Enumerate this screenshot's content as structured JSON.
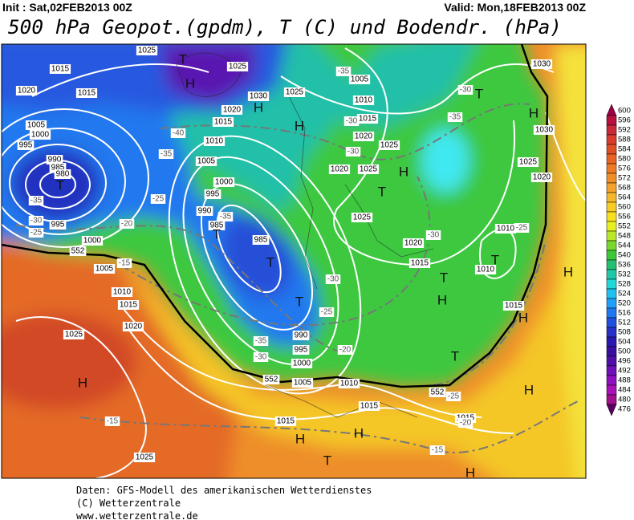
{
  "header": {
    "init": "Init : Sat,02FEB2013 00Z",
    "valid": "Valid: Mon,18FEB2013 00Z",
    "title": "500 hPa Geopot.(gpdm), T (C) und Bodendr. (hPa)"
  },
  "map": {
    "pressure_labels": [
      "1025",
      "1015",
      "1020",
      "1015",
      "1005",
      "1000",
      "995",
      "990",
      "985",
      "980",
      "995",
      "1000",
      "1005",
      "1010",
      "1015",
      "1020",
      "1025",
      "1025",
      "1020",
      "1015",
      "1010",
      "1005",
      "1000",
      "995",
      "990",
      "985",
      "985",
      "1030",
      "1025",
      "1005",
      "1010",
      "1015",
      "1020",
      "1025",
      "1020",
      "1025",
      "1025",
      "1020",
      "1015",
      "1010",
      "1010",
      "1015",
      "1030",
      "1030",
      "1025",
      "1020",
      "990",
      "995",
      "1000",
      "1005",
      "1010",
      "1015",
      "1015",
      "1015",
      "1025"
    ],
    "temperature_labels": [
      "-35",
      "-30",
      "-35",
      "-40",
      "-35",
      "-30",
      "-30",
      "-25",
      "-20",
      "-25",
      "-30",
      "-35",
      "-35",
      "-30",
      "-25",
      "-20",
      "-30",
      "-35",
      "-15",
      "-15",
      "-25",
      "-20",
      "-15",
      "-30",
      "-25"
    ],
    "contour_labels": [
      "552",
      "552",
      "552"
    ],
    "centers": [
      "H",
      "T",
      "H",
      "H",
      "T",
      "H",
      "T",
      "T",
      "T",
      "T",
      "T",
      "H",
      "T",
      "T",
      "H",
      "H",
      "H",
      "T",
      "H",
      "H",
      "H",
      "H",
      "T",
      "H"
    ]
  },
  "legend": {
    "values": [
      600,
      596,
      592,
      588,
      584,
      580,
      576,
      572,
      568,
      564,
      560,
      556,
      552,
      548,
      544,
      540,
      536,
      532,
      528,
      524,
      520,
      516,
      512,
      508,
      504,
      500,
      496,
      492,
      488,
      484,
      480,
      476
    ],
    "colors": [
      "#9a0046",
      "#b8103e",
      "#c82838",
      "#d83c2c",
      "#e04e24",
      "#e86424",
      "#ee7a26",
      "#f28e2a",
      "#f4a22c",
      "#f6b82a",
      "#f8cc26",
      "#f8e020",
      "#e8f020",
      "#b8e828",
      "#78d82c",
      "#3cc838",
      "#22c070",
      "#20c8a8",
      "#20d8d8",
      "#20c0f0",
      "#20a0f8",
      "#2078f0",
      "#2050e0",
      "#2830c8",
      "#2818b0",
      "#3810a0",
      "#5010a8",
      "#7010b8",
      "#9010c0",
      "#a810b8",
      "#a0108c",
      "#5a0060"
    ]
  },
  "footer": {
    "line1": "Daten: GFS-Modell des amerikanischen Wetterdienstes",
    "line2": "(C) Wetterzentrale",
    "line3": "www.wetterzentrale.de"
  }
}
